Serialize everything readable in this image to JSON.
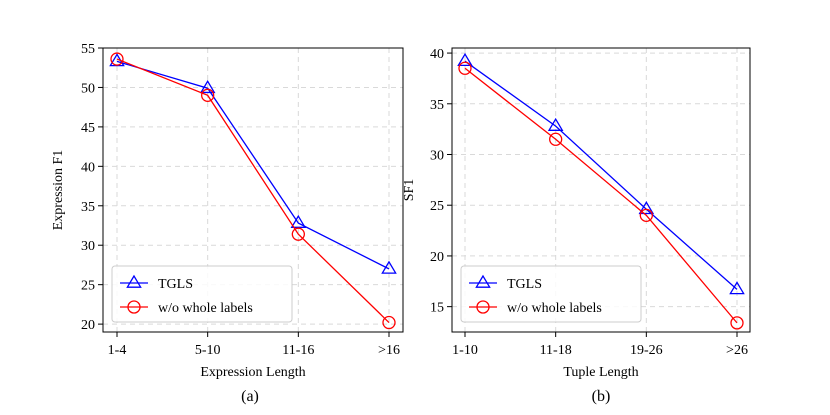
{
  "chart_data": [
    {
      "type": "line",
      "caption": "(a)",
      "xlabel": "Expression Length",
      "ylabel": "Expression F1",
      "categories": [
        "1-4",
        "5-10",
        "11-16",
        ">16"
      ],
      "ylim": [
        19,
        55
      ],
      "yticks": [
        20,
        25,
        30,
        35,
        40,
        45,
        50,
        55
      ],
      "grid": true,
      "legend_position": "bottom-left",
      "series": [
        {
          "name": "TGLS",
          "marker": "triangle",
          "color": "#0000ff",
          "values": [
            53.3,
            49.9,
            32.8,
            27.0
          ]
        },
        {
          "name": "w/o whole labels",
          "marker": "circle",
          "color": "#ff0000",
          "values": [
            53.6,
            49.0,
            31.4,
            20.2
          ]
        }
      ]
    },
    {
      "type": "line",
      "caption": "(b)",
      "xlabel": "Tuple Length",
      "ylabel": "SF1",
      "categories": [
        "1-10",
        "11-18",
        "19-26",
        ">26"
      ],
      "ylim": [
        12.5,
        40.5
      ],
      "yticks": [
        15,
        20,
        25,
        30,
        35,
        40
      ],
      "grid": true,
      "legend_position": "bottom-left",
      "series": [
        {
          "name": "TGLS",
          "marker": "triangle",
          "color": "#0000ff",
          "values": [
            39.2,
            32.8,
            24.6,
            16.7
          ]
        },
        {
          "name": "w/o whole labels",
          "marker": "circle",
          "color": "#ff0000",
          "values": [
            38.5,
            31.5,
            24.0,
            13.4
          ]
        }
      ]
    }
  ]
}
